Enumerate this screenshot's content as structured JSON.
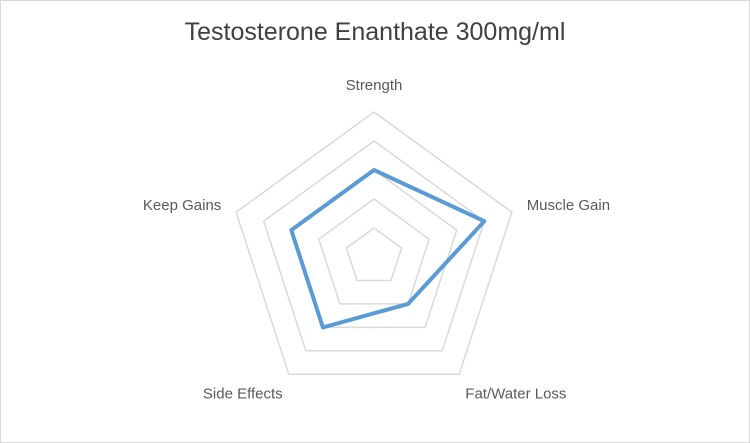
{
  "chart_data": {
    "type": "radar",
    "title": "Testosterone Enanthate 300mg/ml",
    "categories": [
      "Strength",
      "Muscle Gain",
      "Fat/Water Loss",
      "Side Effects",
      "Keep Gains"
    ],
    "series": [
      {
        "values": [
          3,
          4,
          2,
          3,
          3
        ]
      }
    ],
    "rlim": [
      0,
      5
    ],
    "grid": true,
    "legend": "none",
    "colors": {
      "series": "#5b9bd5",
      "grid": "#d9d9d9",
      "text": "#595959",
      "title": "#404040"
    }
  }
}
